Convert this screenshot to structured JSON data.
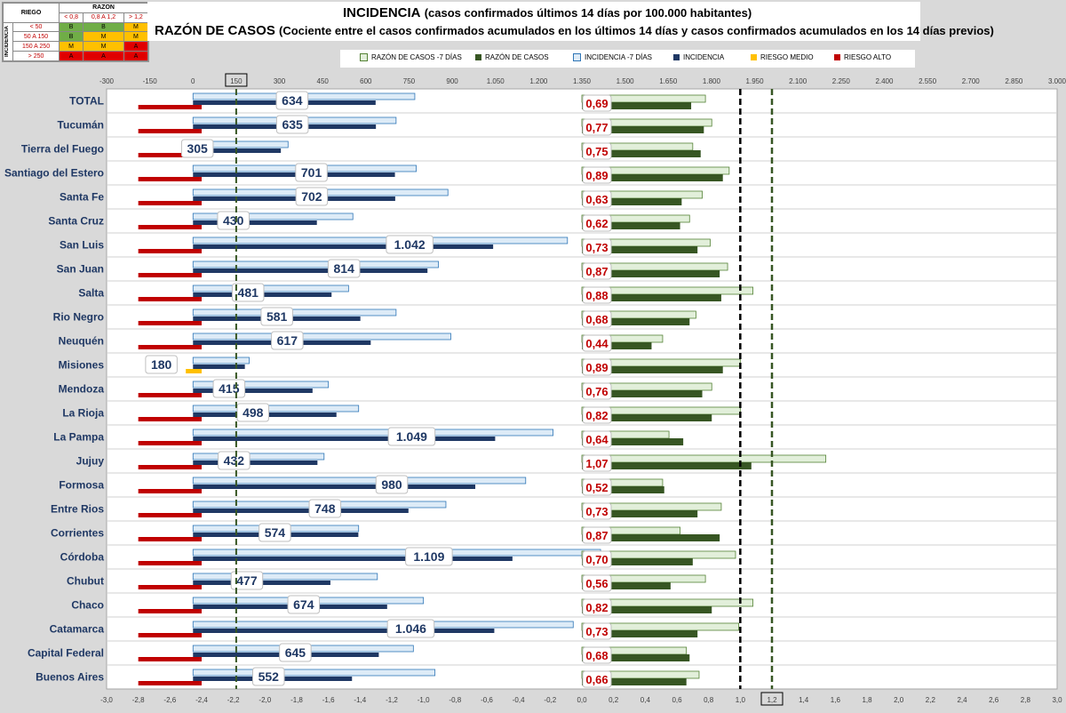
{
  "risk_table": {
    "riego_label": "RIEGO",
    "razon_label": "RAZON",
    "incidencia_label": "INCIDENCIA",
    "razon_ranges": [
      "< 0,8",
      "0,8 A 1,2",
      "> 1,2"
    ],
    "incidencia_ranges": [
      "< 50",
      "50 A 150",
      "150 A 250",
      "> 250"
    ],
    "cells": [
      [
        "B",
        "B",
        "M"
      ],
      [
        "B",
        "M",
        "M"
      ],
      [
        "M",
        "M",
        "A"
      ],
      [
        "A",
        "A",
        "A"
      ]
    ],
    "cell_colors": [
      [
        "#70ad47",
        "#70ad47",
        "#ffc000"
      ],
      [
        "#70ad47",
        "#ffc000",
        "#ffc000"
      ],
      [
        "#ffc000",
        "#ffc000",
        "#e00000"
      ],
      [
        "#e00000",
        "#e00000",
        "#e00000"
      ]
    ]
  },
  "title_line1_main": "INCIDENCIA",
  "title_line1_sub": "(casos confirmados últimos 14 días por 100.000 habitantes)",
  "title_line2_main": "RAZÓN DE CASOS",
  "title_line2_sub": "(Cociente entre el casos confirmados acumulados en los últimos 14 días y casos confirmados acumulados en los 14 días previos)",
  "legend": [
    {
      "label": "RAZÓN DE CASOS -7 DÍAS",
      "color": "#e2efda",
      "border": "#548235"
    },
    {
      "label": "RAZÓN DE CASOS",
      "color": "#375623",
      "border": "#375623"
    },
    {
      "label": "INCIDENCIA -7 DÍAS",
      "color": "#ddebf7",
      "border": "#2e75b6"
    },
    {
      "label": "INCIDENCIA",
      "color": "#1f3864",
      "border": "#1f3864"
    },
    {
      "label": "RIESGO MEDIO",
      "color": "#ffc000",
      "border": "#ffc000"
    },
    {
      "label": "RIESGO ALTO",
      "color": "#c00000",
      "border": "#c00000"
    }
  ],
  "chart_data": {
    "type": "bar",
    "orientation": "horizontal",
    "categories": [
      "TOTAL",
      "Tucumán",
      "Tierra del Fuego",
      "Santiago del Estero",
      "Santa Fe",
      "Santa Cruz",
      "San Luis",
      "San Juan",
      "Salta",
      "Rio Negro",
      "Neuquén",
      "Misiones",
      "Mendoza",
      "La Rioja",
      "La Pampa",
      "Jujuy",
      "Formosa",
      "Entre Rios",
      "Corrientes",
      "Córdoba",
      "Chubut",
      "Chaco",
      "Catamarca",
      "Capital Federal",
      "Buenos Aires"
    ],
    "top_axis": {
      "min": -300,
      "max": 3000,
      "ticks": [
        "-300",
        "-150",
        "0",
        "150",
        "300",
        "450",
        "600",
        "750",
        "900",
        "1.050",
        "1.200",
        "1.350",
        "1.500",
        "1.650",
        "1.800",
        "1.950",
        "2.100",
        "2.250",
        "2.400",
        "2.550",
        "2.700",
        "2.850",
        "3.000"
      ],
      "highlighted_tick": "150"
    },
    "bottom_axis": {
      "min": -3.0,
      "max": 3.0,
      "ticks": [
        "-3,0",
        "-2,8",
        "-2,6",
        "-2,4",
        "-2,2",
        "-2,0",
        "-1,8",
        "-1,6",
        "-1,4",
        "-1,2",
        "-1,0",
        "-0,8",
        "-0,6",
        "-0,4",
        "-0,2",
        "0,0",
        "0,2",
        "0,4",
        "0,6",
        "0,8",
        "1,0",
        "1,2",
        "1,4",
        "1,6",
        "1,8",
        "2,0",
        "2,2",
        "2,4",
        "2,6",
        "2,8",
        "3,0"
      ],
      "highlighted_tick": "1,2"
    },
    "reference_lines": {
      "incidencia_150": 150,
      "razon_1_0": 1.0,
      "razon_1_2": 1.2
    },
    "series": [
      {
        "name": "INCIDENCIA",
        "values": [
          634,
          635,
          305,
          701,
          702,
          430,
          1042,
          814,
          481,
          581,
          617,
          180,
          415,
          498,
          1049,
          432,
          980,
          748,
          574,
          1109,
          477,
          674,
          1046,
          645,
          552
        ]
      },
      {
        "name": "INCIDENCIA -7 DÍAS",
        "values": [
          770,
          705,
          330,
          775,
          885,
          555,
          1300,
          852,
          540,
          705,
          895,
          195,
          470,
          575,
          1250,
          455,
          1155,
          878,
          575,
          1415,
          640,
          800,
          1320,
          765,
          840
        ]
      },
      {
        "name": "RAZÓN DE CASOS",
        "values": [
          0.69,
          0.77,
          0.75,
          0.89,
          0.63,
          0.62,
          0.73,
          0.87,
          0.88,
          0.68,
          0.44,
          0.89,
          0.76,
          0.82,
          0.64,
          1.07,
          0.52,
          0.73,
          0.87,
          0.7,
          0.56,
          0.82,
          0.73,
          0.68,
          0.66
        ]
      },
      {
        "name": "RAZÓN DE CASOS -7 DÍAS",
        "values": [
          0.78,
          0.82,
          0.7,
          0.93,
          0.76,
          0.68,
          0.81,
          0.92,
          1.08,
          0.72,
          0.51,
          1.0,
          0.82,
          1.0,
          0.55,
          1.54,
          0.51,
          0.88,
          0.62,
          0.97,
          0.78,
          1.08,
          0.99,
          0.66,
          0.74
        ]
      },
      {
        "name": "riesgo",
        "values": [
          "A",
          "A",
          "A",
          "A",
          "A",
          "A",
          "A",
          "A",
          "A",
          "A",
          "A",
          "M",
          "A",
          "A",
          "A",
          "A",
          "A",
          "A",
          "A",
          "A",
          "A",
          "A",
          "A",
          "A",
          "A"
        ]
      }
    ],
    "incidencia_labels": [
      "634",
      "635",
      "305",
      "701",
      "702",
      "430",
      "1.042",
      "814",
      "481",
      "581",
      "617",
      "180",
      "415",
      "498",
      "1.049",
      "432",
      "980",
      "748",
      "574",
      "1.109",
      "477",
      "674",
      "1.046",
      "645",
      "552"
    ],
    "razon_labels": [
      "0,69",
      "0,77",
      "0,75",
      "0,89",
      "0,63",
      "0,62",
      "0,73",
      "0,87",
      "0,88",
      "0,68",
      "0,44",
      "0,89",
      "0,76",
      "0,82",
      "0,64",
      "1,07",
      "0,52",
      "0,73",
      "0,87",
      "0,70",
      "0,56",
      "0,82",
      "0,73",
      "0,68",
      "0,66"
    ]
  }
}
